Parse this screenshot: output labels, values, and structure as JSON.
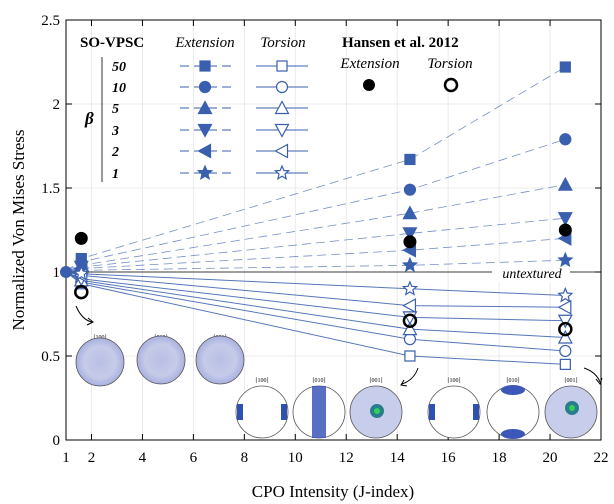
{
  "chart_data": {
    "type": "line",
    "xlabel": "CPO Intensity (J-index)",
    "ylabel": "Normalized Von Mises Stress",
    "xlim": [
      1,
      22
    ],
    "ylim": [
      0,
      2.5
    ],
    "x_ticks": [
      1,
      2,
      4,
      6,
      8,
      10,
      12,
      14,
      16,
      18,
      20,
      22
    ],
    "y_ticks": [
      0,
      0.5,
      1,
      1.5,
      2,
      2.5
    ],
    "x_tick_labels": [
      "1",
      "2",
      "4",
      "6",
      "8",
      "10",
      "12",
      "14",
      "16",
      "18",
      "20",
      "22"
    ],
    "y_tick_labels": [
      "0",
      "0.5",
      "1",
      "1.5",
      "2",
      "2.5"
    ],
    "grid": true,
    "legend_position": "top-left",
    "legend": {
      "so_vpsc_label": "SO-VPSC",
      "extension_label": "Extension",
      "torsion_label": "Torsion",
      "beta_symbol": "β",
      "hansen_label": "Hansen et al. 2012",
      "beta_values": [
        "50",
        "10",
        "5",
        "3",
        "2",
        "1"
      ]
    },
    "colors": {
      "model": "#3a5fae",
      "model_torsion_line": "#3a5fae",
      "experiment": "#000000"
    },
    "annotation_untextured": "untextured",
    "x_points": [
      1,
      1.6,
      14.5,
      20.6
    ],
    "series": [
      {
        "name": "50",
        "marker": "square",
        "mode": "extension",
        "y": [
          1.0,
          1.08,
          1.67,
          2.22
        ]
      },
      {
        "name": "10",
        "marker": "circle",
        "mode": "extension",
        "y": [
          1.0,
          1.06,
          1.49,
          1.79
        ]
      },
      {
        "name": "5",
        "marker": "triangle-up",
        "mode": "extension",
        "y": [
          1.0,
          1.04,
          1.35,
          1.52
        ]
      },
      {
        "name": "3",
        "marker": "triangle-down",
        "mode": "extension",
        "y": [
          1.0,
          1.03,
          1.23,
          1.32
        ]
      },
      {
        "name": "2",
        "marker": "triangle-left",
        "mode": "extension",
        "y": [
          1.0,
          1.02,
          1.13,
          1.2
        ]
      },
      {
        "name": "1",
        "marker": "star",
        "mode": "extension",
        "y": [
          1.0,
          1.01,
          1.04,
          1.07
        ]
      },
      {
        "name": "50",
        "marker": "square",
        "mode": "torsion",
        "y": [
          1.0,
          0.93,
          0.5,
          0.45
        ]
      },
      {
        "name": "10",
        "marker": "circle",
        "mode": "torsion",
        "y": [
          1.0,
          0.94,
          0.6,
          0.53
        ]
      },
      {
        "name": "5",
        "marker": "triangle-up",
        "mode": "torsion",
        "y": [
          1.0,
          0.95,
          0.66,
          0.61
        ]
      },
      {
        "name": "3",
        "marker": "triangle-down",
        "mode": "torsion",
        "y": [
          1.0,
          0.96,
          0.73,
          0.71
        ]
      },
      {
        "name": "2",
        "marker": "triangle-left",
        "mode": "torsion",
        "y": [
          1.0,
          0.98,
          0.8,
          0.79
        ]
      },
      {
        "name": "1",
        "marker": "star",
        "mode": "torsion",
        "y": [
          1.0,
          0.99,
          0.9,
          0.86
        ]
      }
    ],
    "experiments": [
      {
        "name": "Extension",
        "x": [
          1.6,
          14.5,
          20.6
        ],
        "y": [
          1.2,
          1.18,
          1.25
        ]
      },
      {
        "name": "Torsion",
        "x": [
          1.6,
          14.5,
          20.6
        ],
        "y": [
          0.88,
          0.71,
          0.66
        ]
      }
    ],
    "pole_figure_labels": [
      "[100]",
      "[010]",
      "[001]"
    ]
  }
}
